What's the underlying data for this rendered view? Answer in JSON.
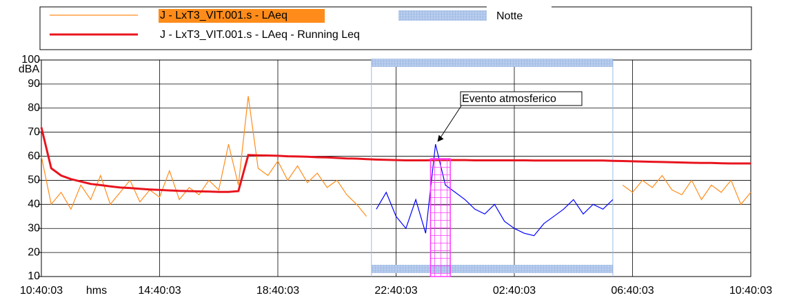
{
  "chart_data": {
    "type": "line",
    "x_label": "hms",
    "y_label": "dBA",
    "x": [
      "10:40:03",
      "11:00:03",
      "11:20:03",
      "11:40:03",
      "12:00:03",
      "12:20:03",
      "12:40:03",
      "13:00:03",
      "13:20:03",
      "13:40:03",
      "14:00:03",
      "14:20:03",
      "14:40:03",
      "15:00:03",
      "15:20:03",
      "15:40:03",
      "16:00:03",
      "16:20:03",
      "16:40:03",
      "17:00:03",
      "17:20:03",
      "17:40:03",
      "18:00:03",
      "18:20:03",
      "18:40:03",
      "19:00:03",
      "19:20:03",
      "19:40:03",
      "20:00:03",
      "20:20:03",
      "20:40:03",
      "21:00:03",
      "21:20:03",
      "21:40:03",
      "22:00:03",
      "22:20:03",
      "22:40:03",
      "23:00:03",
      "23:20:03",
      "23:40:03",
      "00:00:03",
      "00:20:03",
      "00:40:03",
      "01:00:03",
      "01:20:03",
      "01:40:03",
      "02:00:03",
      "02:20:03",
      "02:40:03",
      "03:00:03",
      "03:20:03",
      "03:40:03",
      "04:00:03",
      "04:20:03",
      "04:40:03",
      "05:00:03",
      "05:20:03",
      "05:40:03",
      "06:00:03",
      "06:20:03",
      "06:40:03",
      "07:00:03",
      "07:20:03",
      "07:40:03",
      "08:00:03",
      "08:20:03",
      "08:40:03",
      "09:00:03",
      "09:20:03",
      "09:40:03",
      "10:00:03",
      "10:20:03",
      "10:40:03"
    ],
    "series": [
      {
        "name": "J - LxT3_VIT.001.s - LAeq",
        "color": "#ff8c1a",
        "night_color": "#0000ff",
        "values": [
          60,
          40,
          45,
          38,
          48,
          42,
          52,
          40,
          45,
          50,
          41,
          46,
          43,
          54,
          42,
          47,
          44,
          50,
          46,
          65,
          48,
          85,
          55,
          52,
          58,
          50,
          56,
          49,
          53,
          47,
          50,
          44,
          40,
          35,
          38,
          45,
          35,
          30,
          42,
          28,
          65,
          48,
          45,
          42,
          38,
          36,
          40,
          33,
          30,
          28,
          27,
          32,
          35,
          38,
          42,
          36,
          40,
          38,
          42,
          48,
          45,
          50,
          47,
          52,
          46,
          44,
          50,
          42,
          48,
          45,
          50,
          40,
          45
        ]
      },
      {
        "name": "J - LxT3_VIT.001.s - LAeq - Running Leq",
        "color": "#e8141e",
        "values": [
          72,
          55,
          52,
          50.5,
          49.5,
          48.5,
          48,
          47.5,
          47,
          46.8,
          46.5,
          46.2,
          46,
          45.8,
          45.6,
          45.5,
          45.4,
          45.3,
          45.2,
          45.2,
          45.5,
          60.5,
          60.4,
          60.3,
          60.2,
          60,
          59.9,
          59.8,
          59.6,
          59.5,
          59.3,
          59.1,
          59,
          58.8,
          58.6,
          58.5,
          58.4,
          58.3,
          58.3,
          58.3,
          58.4,
          58.4,
          58.4,
          58.4,
          58.3,
          58.3,
          58.3,
          58.3,
          58.3,
          58.3,
          58.2,
          58.2,
          58.2,
          58.2,
          58.2,
          58.2,
          58.2,
          58.2,
          58.1,
          58,
          57.9,
          57.8,
          57.7,
          57.6,
          57.5,
          57.4,
          57.3,
          57.2,
          57.2,
          57.1,
          57,
          57,
          57
        ]
      }
    ],
    "night": {
      "name": "Notte",
      "color": "#9dbbe6",
      "start": "21:50:03",
      "end": "06:00:03"
    },
    "event": {
      "label": "Evento atmosferico",
      "color": "#ff33ff",
      "start": "23:50:03",
      "end": "00:30:03",
      "level": 59,
      "peak_at": "00:04:03",
      "peak": 66
    },
    "xlim": [
      "10:40:03",
      "10:40:03"
    ],
    "xticks": [
      "10:40:03",
      "14:40:03",
      "18:40:03",
      "22:40:03",
      "02:40:03",
      "06:40:03",
      "10:40:03"
    ],
    "ylim": [
      10,
      100
    ],
    "yticks": [
      10,
      20,
      30,
      40,
      50,
      60,
      70,
      80,
      90,
      100
    ],
    "grid": true
  }
}
